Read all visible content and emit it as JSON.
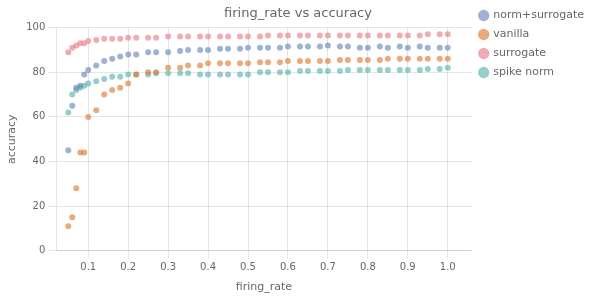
{
  "chart_data": {
    "type": "scatter",
    "title": "firing_rate vs accuracy",
    "xlabel": "firing_rate",
    "ylabel": "accuracy",
    "series": [
      {
        "name": "norm+surrogate",
        "color": "#6a88bc",
        "x": [
          0.05,
          0.06,
          0.07,
          0.08,
          0.09,
          0.1,
          0.12,
          0.14,
          0.16,
          0.18,
          0.2,
          0.22,
          0.25,
          0.27,
          0.3,
          0.33,
          0.35,
          0.38,
          0.4,
          0.43,
          0.45,
          0.48,
          0.5,
          0.53,
          0.55,
          0.58,
          0.6,
          0.63,
          0.65,
          0.68,
          0.7,
          0.73,
          0.75,
          0.78,
          0.8,
          0.83,
          0.85,
          0.88,
          0.9,
          0.93,
          0.95,
          0.98,
          1.0
        ],
        "values": [
          45,
          65,
          73,
          74,
          79,
          81,
          83,
          85,
          86,
          87,
          88,
          88,
          89,
          89,
          89,
          89.5,
          90,
          90,
          90,
          90.5,
          90.5,
          90.5,
          91,
          91,
          91,
          91,
          91.5,
          91.5,
          91.5,
          91.5,
          92,
          91.5,
          91.5,
          91,
          91,
          91.5,
          91,
          91.5,
          91,
          91.5,
          91,
          91,
          91
        ]
      },
      {
        "name": "vanilla",
        "color": "#e07b39",
        "x": [
          0.05,
          0.06,
          0.07,
          0.08,
          0.09,
          0.1,
          0.12,
          0.14,
          0.16,
          0.18,
          0.2,
          0.22,
          0.25,
          0.27,
          0.3,
          0.33,
          0.35,
          0.38,
          0.4,
          0.43,
          0.45,
          0.48,
          0.5,
          0.53,
          0.55,
          0.58,
          0.6,
          0.63,
          0.65,
          0.68,
          0.7,
          0.73,
          0.75,
          0.78,
          0.8,
          0.83,
          0.85,
          0.88,
          0.9,
          0.93,
          0.95,
          0.98,
          1.0
        ],
        "values": [
          11,
          15,
          28,
          44,
          44,
          60,
          63,
          70,
          72,
          73,
          75,
          79,
          80,
          80,
          82,
          82,
          83,
          83,
          84,
          84,
          84,
          84,
          84,
          84.5,
          84.5,
          84.5,
          85,
          85,
          85,
          85,
          85,
          85.5,
          85.5,
          85.5,
          85.5,
          85.5,
          86,
          86,
          86,
          86,
          86,
          86,
          86
        ]
      },
      {
        "name": "surrogate",
        "color": "#e8808a",
        "x": [
          0.05,
          0.06,
          0.07,
          0.08,
          0.09,
          0.1,
          0.12,
          0.14,
          0.16,
          0.18,
          0.2,
          0.22,
          0.25,
          0.27,
          0.3,
          0.33,
          0.35,
          0.38,
          0.4,
          0.43,
          0.45,
          0.48,
          0.5,
          0.53,
          0.55,
          0.58,
          0.6,
          0.63,
          0.65,
          0.68,
          0.7,
          0.73,
          0.75,
          0.78,
          0.8,
          0.83,
          0.85,
          0.88,
          0.9,
          0.93,
          0.95,
          0.98,
          1.0
        ],
        "values": [
          89,
          91,
          92,
          93,
          93,
          94,
          94.5,
          95,
          95,
          95,
          95.5,
          95.5,
          95.5,
          95.5,
          96,
          96,
          96,
          96,
          96,
          96,
          96,
          96,
          96,
          96,
          96.5,
          96.5,
          96.5,
          96.5,
          96.5,
          96.5,
          96.5,
          96.5,
          96.5,
          96.5,
          96.5,
          96.5,
          96.5,
          96.5,
          96.5,
          96.5,
          97,
          97,
          97
        ]
      },
      {
        "name": "spike norm",
        "color": "#5bb5ae",
        "x": [
          0.05,
          0.06,
          0.07,
          0.08,
          0.09,
          0.1,
          0.12,
          0.14,
          0.16,
          0.18,
          0.2,
          0.22,
          0.25,
          0.27,
          0.3,
          0.33,
          0.35,
          0.38,
          0.4,
          0.43,
          0.45,
          0.48,
          0.5,
          0.53,
          0.55,
          0.58,
          0.6,
          0.63,
          0.65,
          0.68,
          0.7,
          0.73,
          0.75,
          0.78,
          0.8,
          0.83,
          0.85,
          0.88,
          0.9,
          0.93,
          0.95,
          0.98,
          1.0
        ],
        "values": [
          62,
          70,
          72,
          73,
          74,
          75,
          76,
          77,
          78,
          78,
          79,
          79,
          79,
          79.5,
          79.5,
          79.5,
          79.5,
          79,
          79,
          79,
          79,
          79,
          79,
          80,
          80,
          80,
          80,
          80.5,
          80.5,
          80.5,
          80.5,
          80.5,
          81,
          81,
          81,
          81,
          81,
          81,
          81,
          81,
          81.5,
          81.5,
          82
        ]
      }
    ],
    "xlim": [
      0.02,
      1.06
    ],
    "ylim": [
      0,
      100
    ],
    "xticks": [
      0.1,
      0.2,
      0.3,
      0.4,
      0.5,
      0.6,
      0.7,
      0.8,
      0.9,
      {
        "value": 1.0,
        "label": "1.0"
      }
    ],
    "yticks": [
      0,
      20,
      40,
      60,
      80,
      100
    ],
    "grid": true,
    "legend": "right"
  }
}
